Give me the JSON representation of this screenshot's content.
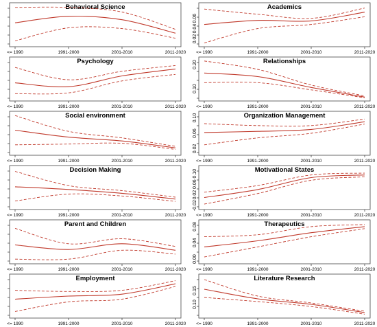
{
  "chart_data": [
    {
      "type": "line",
      "title": "Behavioral Science",
      "x": [
        "<= 1990",
        "1991-2000",
        "2001-2010",
        "2011-2020"
      ],
      "ylim": [
        0,
        1
      ],
      "yticks": [],
      "series": [
        {
          "role": "estimate",
          "values": [
            0.55,
            0.72,
            0.63,
            0.28
          ]
        },
        {
          "role": "upper",
          "values": [
            0.95,
            0.95,
            0.83,
            0.38
          ]
        },
        {
          "role": "lower",
          "values": [
            0.08,
            0.42,
            0.4,
            0.15
          ]
        }
      ]
    },
    {
      "type": "line",
      "title": "Academics",
      "x": [
        "<= 1990",
        "1991-2000",
        "2001-2010",
        "2011-2020"
      ],
      "ylim": [
        0.01,
        0.085
      ],
      "yticks": [
        "0.02",
        "0.04",
        "0.06"
      ],
      "series": [
        {
          "role": "estimate",
          "values": [
            0.048,
            0.056,
            0.055,
            0.072
          ]
        },
        {
          "role": "upper",
          "values": [
            0.078,
            0.068,
            0.06,
            0.08
          ]
        },
        {
          "role": "lower",
          "values": [
            0.012,
            0.04,
            0.048,
            0.063
          ]
        }
      ]
    },
    {
      "type": "line",
      "title": "Psychology",
      "x": [
        "<= 1990",
        "1991-2000",
        "2001-2010",
        "2011-2020"
      ],
      "ylim": [
        0,
        1
      ],
      "yticks": [],
      "series": [
        {
          "role": "estimate",
          "values": [
            0.4,
            0.3,
            0.58,
            0.76
          ]
        },
        {
          "role": "upper",
          "values": [
            0.8,
            0.48,
            0.7,
            0.85
          ]
        },
        {
          "role": "lower",
          "values": [
            0.12,
            0.14,
            0.45,
            0.62
          ]
        }
      ]
    },
    {
      "type": "line",
      "title": "Relationships",
      "x": [
        "<= 1990",
        "1991-2000",
        "2001-2010",
        "2011-2020"
      ],
      "ylim": [
        0.06,
        0.22
      ],
      "yticks": [
        "0.10",
        "0.20"
      ],
      "series": [
        {
          "role": "estimate",
          "values": [
            0.165,
            0.15,
            0.105,
            0.065
          ]
        },
        {
          "role": "upper",
          "values": [
            0.215,
            0.18,
            0.115,
            0.07
          ]
        },
        {
          "role": "lower",
          "values": [
            0.125,
            0.125,
            0.095,
            0.062
          ]
        }
      ]
    },
    {
      "type": "line",
      "title": "Social environment",
      "x": [
        "<= 1990",
        "1991-2000",
        "2001-2010",
        "2011-2020"
      ],
      "ylim": [
        0,
        1
      ],
      "yticks": [],
      "series": [
        {
          "role": "estimate",
          "values": [
            0.58,
            0.4,
            0.3,
            0.12
          ]
        },
        {
          "role": "upper",
          "values": [
            0.96,
            0.55,
            0.38,
            0.16
          ]
        },
        {
          "role": "lower",
          "values": [
            0.2,
            0.22,
            0.24,
            0.08
          ]
        }
      ]
    },
    {
      "type": "line",
      "title": "Organization Management",
      "x": [
        "<= 1990",
        "1991-2000",
        "2001-2010",
        "2011-2020"
      ],
      "ylim": [
        0.01,
        0.11
      ],
      "yticks": [
        "0.02",
        "0.06",
        "0.10"
      ],
      "series": [
        {
          "role": "estimate",
          "values": [
            0.062,
            0.065,
            0.07,
            0.09
          ]
        },
        {
          "role": "upper",
          "values": [
            0.085,
            0.08,
            0.08,
            0.097
          ]
        },
        {
          "role": "lower",
          "values": [
            0.03,
            0.048,
            0.06,
            0.084
          ]
        }
      ]
    },
    {
      "type": "line",
      "title": "Decision Making",
      "x": [
        "<= 1990",
        "1991-2000",
        "2001-2010",
        "2011-2020"
      ],
      "ylim": [
        0,
        1
      ],
      "yticks": [],
      "series": [
        {
          "role": "estimate",
          "values": [
            0.52,
            0.45,
            0.35,
            0.2
          ]
        },
        {
          "role": "upper",
          "values": [
            0.92,
            0.55,
            0.42,
            0.25
          ]
        },
        {
          "role": "lower",
          "values": [
            0.15,
            0.33,
            0.28,
            0.14
          ]
        }
      ]
    },
    {
      "type": "line",
      "title": "Motivational States",
      "x": [
        "<= 1990",
        "1991-2000",
        "2001-2010",
        "2011-2020"
      ],
      "ylim": [
        -0.025,
        0.12
      ],
      "yticks": [
        "-0.02",
        "0.02",
        "0.06",
        "0.10"
      ],
      "series": [
        {
          "role": "estimate",
          "values": [
            0.01,
            0.04,
            0.085,
            0.095
          ]
        },
        {
          "role": "upper",
          "values": [
            0.03,
            0.055,
            0.095,
            0.102
          ]
        },
        {
          "role": "lower",
          "values": [
            -0.015,
            0.025,
            0.075,
            0.088
          ]
        }
      ]
    },
    {
      "type": "line",
      "title": "Parent and Children",
      "x": [
        "<= 1990",
        "1991-2000",
        "2001-2010",
        "2011-2020"
      ],
      "ylim": [
        0,
        1
      ],
      "yticks": [],
      "series": [
        {
          "role": "estimate",
          "values": [
            0.42,
            0.3,
            0.45,
            0.28
          ]
        },
        {
          "role": "upper",
          "values": [
            0.85,
            0.45,
            0.58,
            0.38
          ]
        },
        {
          "role": "lower",
          "values": [
            0.05,
            0.05,
            0.28,
            0.18
          ]
        }
      ]
    },
    {
      "type": "line",
      "title": "Therapeutics",
      "x": [
        "<= 1990",
        "1991-2000",
        "2001-2010",
        "2011-2020"
      ],
      "ylim": [
        -0.005,
        0.09
      ],
      "yticks": [
        "0.00",
        "0.04",
        "0.08"
      ],
      "series": [
        {
          "role": "estimate",
          "values": [
            0.03,
            0.045,
            0.065,
            0.08
          ]
        },
        {
          "role": "upper",
          "values": [
            0.055,
            0.06,
            0.08,
            0.085
          ]
        },
        {
          "role": "lower",
          "values": [
            0.005,
            0.03,
            0.055,
            0.075
          ]
        }
      ]
    },
    {
      "type": "line",
      "title": "Employment",
      "x": [
        "<= 1990",
        "1991-2000",
        "2001-2010",
        "2011-2020"
      ],
      "ylim": [
        0,
        1
      ],
      "yticks": [],
      "series": [
        {
          "role": "estimate",
          "values": [
            0.42,
            0.5,
            0.55,
            0.82
          ]
        },
        {
          "role": "upper",
          "values": [
            0.65,
            0.62,
            0.65,
            0.9
          ]
        },
        {
          "role": "lower",
          "values": [
            0.1,
            0.35,
            0.42,
            0.75
          ]
        }
      ]
    },
    {
      "type": "line",
      "title": "Literature Research",
      "x": [
        "<= 1990",
        "1991-2000",
        "2001-2010",
        "2011-2020"
      ],
      "ylim": [
        0.06,
        0.2
      ],
      "yticks": [
        "0.10",
        "0.15"
      ],
      "series": [
        {
          "role": "estimate",
          "values": [
            0.155,
            0.12,
            0.1,
            0.07
          ]
        },
        {
          "role": "upper",
          "values": [
            0.19,
            0.13,
            0.105,
            0.075
          ]
        },
        {
          "role": "lower",
          "values": [
            0.125,
            0.11,
            0.092,
            0.064
          ]
        }
      ]
    }
  ],
  "colors": {
    "estimate": "#c0392b",
    "band": "#c0392b",
    "axis": "#444444"
  }
}
